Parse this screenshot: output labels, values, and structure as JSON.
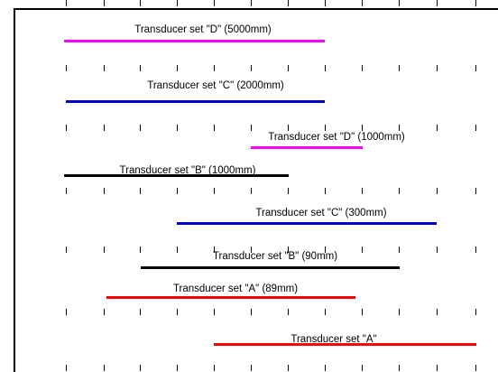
{
  "colors": {
    "magenta": "#ff00ff",
    "blue": "#0000cc",
    "black": "#000000",
    "red": "#ff0000"
  },
  "ranges": [
    {
      "label": "Transducer set \"D\" (5000mm)",
      "color": "#ff00ff"
    },
    {
      "label": "Transducer set \"C\" (2000mm)",
      "color": "#0000cc"
    },
    {
      "label": "Transducer set \"D\" (1000mm)",
      "color": "#ff00ff"
    },
    {
      "label": "Transducer set \"B\" (1000mm)",
      "color": "#000000"
    },
    {
      "label": "Transducer set \"C\" (300mm)",
      "color": "#0000cc"
    },
    {
      "label": "Transducer set \"B\" (90mm)",
      "color": "#000000"
    },
    {
      "label": "Transducer set \"A\" (89mm)",
      "color": "#ff0000"
    },
    {
      "label": "Transducer set \"A\"",
      "color": "#ff0000"
    }
  ]
}
